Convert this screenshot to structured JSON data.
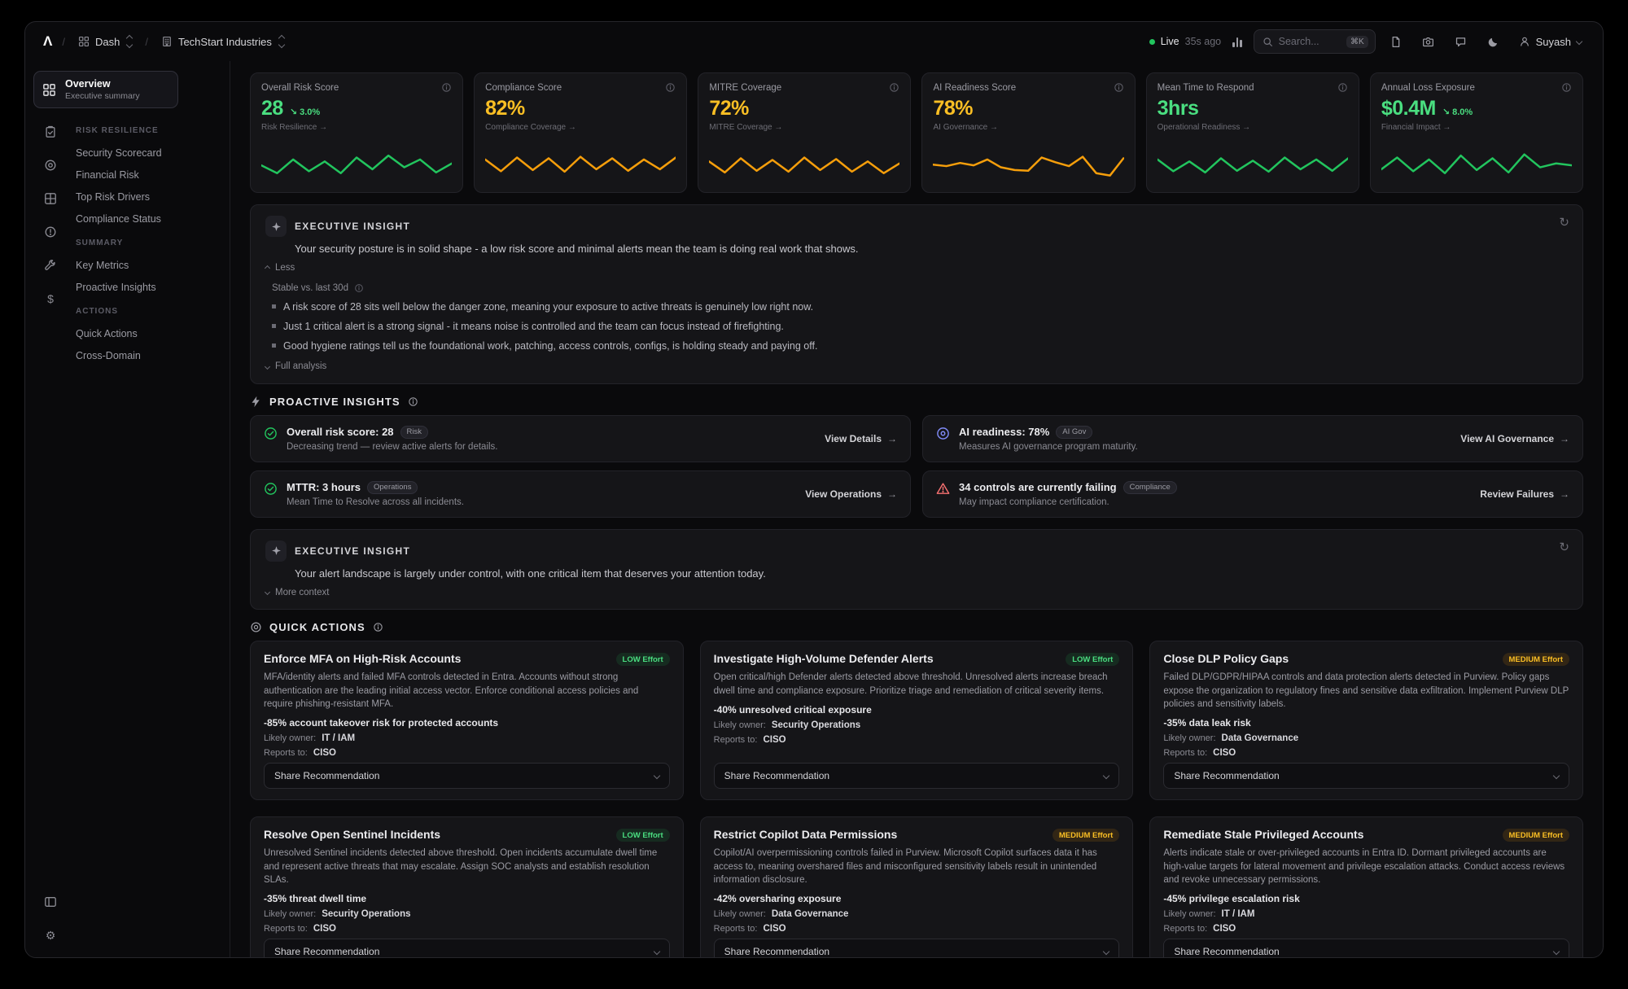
{
  "glyphs": {
    "arrow": "→",
    "refresh": "↻",
    "dollar": "$",
    "gear": "⚙"
  },
  "topbar": {
    "logo": "Λ",
    "crumbs": {
      "sep": "/",
      "dash": "Dash",
      "org": "TechStart Industries"
    },
    "live": {
      "label": "Live",
      "ago": "35s ago"
    },
    "search": {
      "placeholder": "Search...",
      "shortcut": "⌘K"
    },
    "user": {
      "name": "Suyash"
    }
  },
  "sidebar": {
    "overview": {
      "title": "Overview",
      "subtitle": "Executive summary"
    },
    "sections": [
      {
        "label": "RISK RESILIENCE",
        "items": [
          "Security Scorecard",
          "Financial Risk",
          "Top Risk Drivers",
          "Compliance Status"
        ]
      },
      {
        "label": "SUMMARY",
        "items": [
          "Key Metrics",
          "Proactive Insights"
        ]
      },
      {
        "label": "ACTIONS",
        "items": [
          "Quick Actions",
          "Cross-Domain"
        ]
      }
    ]
  },
  "kpis": [
    {
      "label": "Overall Risk Score",
      "value": "28",
      "delta": "↘ 3.0%",
      "sub": "Risk Resilience →",
      "color": "#4ade80",
      "spark": {
        "color": "#22c55e",
        "values": [
          40,
          20,
          55,
          25,
          50,
          20,
          60,
          30,
          65,
          35,
          55,
          22,
          45
        ]
      }
    },
    {
      "label": "Compliance Score",
      "value": "82%",
      "delta": "",
      "sub": "Compliance Coverage →",
      "color": "#fbbf24",
      "spark": {
        "color": "#f59e0b",
        "values": [
          55,
          25,
          60,
          28,
          58,
          24,
          62,
          30,
          58,
          26,
          55,
          30,
          60
        ]
      }
    },
    {
      "label": "MITRE Coverage",
      "value": "72%",
      "delta": "",
      "sub": "MITRE Coverage →",
      "color": "#fbbf24",
      "spark": {
        "color": "#f59e0b",
        "values": [
          50,
          22,
          58,
          26,
          54,
          24,
          60,
          28,
          56,
          24,
          50,
          20,
          45
        ]
      }
    },
    {
      "label": "AI Readiness Score",
      "value": "78%",
      "delta": "",
      "sub": "AI Governance →",
      "color": "#fbbf24",
      "spark": {
        "color": "#f59e0b",
        "values": [
          42,
          38,
          46,
          40,
          55,
          35,
          28,
          26,
          60,
          48,
          38,
          62,
          20,
          14,
          58
        ]
      }
    },
    {
      "label": "Mean Time to Respond",
      "value": "3hrs",
      "delta": "",
      "sub": "Operational Readiness →",
      "color": "#4ade80",
      "spark": {
        "color": "#22c55e",
        "values": [
          55,
          25,
          50,
          22,
          58,
          26,
          52,
          24,
          60,
          30,
          55,
          26,
          58
        ]
      }
    },
    {
      "label": "Annual Loss Exposure",
      "value": "$0.4M",
      "delta": "↘ 8.0%",
      "sub": "Financial Impact →",
      "color": "#4ade80",
      "spark": {
        "color": "#22c55e",
        "values": [
          30,
          60,
          25,
          55,
          20,
          65,
          28,
          58,
          22,
          68,
          35,
          45,
          40
        ]
      }
    }
  ],
  "insight1": {
    "title": "EXECUTIVE INSIGHT",
    "summary": "Your security posture is in solid shape - a low risk score and minimal alerts mean the team is doing real work that shows.",
    "less_label": "Less",
    "trend_label": "Stable vs. last 30d",
    "bullets": [
      "A risk score of 28 sits well below the danger zone, meaning your exposure to active threats is genuinely low right now.",
      "Just 1 critical alert is a strong signal - it means noise is controlled and the team can focus instead of firefighting.",
      "Good hygiene ratings tell us the foundational work, patching, access controls, configs, is holding steady and paying off."
    ],
    "expand_label": "Full analysis"
  },
  "proactive": {
    "title": "PROACTIVE INSIGHTS",
    "cards": [
      {
        "title": "Overall risk score: 28",
        "badge": "Risk",
        "desc": "Decreasing trend — review active alerts for details.",
        "cta": "View Details"
      },
      {
        "title": "AI readiness: 78%",
        "badge": "AI Gov",
        "desc": "Measures AI governance program maturity.",
        "cta": "View AI Governance"
      },
      {
        "title": "MTTR: 3 hours",
        "badge": "Operations",
        "desc": "Mean Time to Resolve across all incidents.",
        "cta": "View Operations"
      },
      {
        "title": "34 controls are currently failing",
        "badge": "Compliance",
        "desc": "May impact compliance certification.",
        "cta": "Review Failures"
      }
    ]
  },
  "insight2": {
    "title": "EXECUTIVE INSIGHT",
    "summary": "Your alert landscape is largely under control, with one critical item that deserves your attention today.",
    "expand_label": "More context"
  },
  "quick_actions": {
    "title": "QUICK ACTIONS",
    "owner_label": "Likely owner:",
    "reports_label": "Reports to:",
    "share_label": "Share Recommendation",
    "cards": [
      {
        "title": "Enforce MFA on High-Risk Accounts",
        "effort": "LOW Effort",
        "body": "MFA/identity alerts and failed MFA controls detected in Entra. Accounts without strong authentication are the leading initial access vector. Enforce conditional access policies and require phishing-resistant MFA.",
        "metric": "-85% account takeover risk for protected accounts",
        "owner": "IT / IAM",
        "reports": "CISO"
      },
      {
        "title": "Investigate High-Volume Defender Alerts",
        "effort": "LOW Effort",
        "body": "Open critical/high Defender alerts detected above threshold. Unresolved alerts increase breach dwell time and compliance exposure. Prioritize triage and remediation of critical severity items.",
        "metric": "-40% unresolved critical exposure",
        "owner": "Security Operations",
        "reports": "CISO"
      },
      {
        "title": "Close DLP Policy Gaps",
        "effort": "MEDIUM Effort",
        "body": "Failed DLP/GDPR/HIPAA controls and data protection alerts detected in Purview. Policy gaps expose the organization to regulatory fines and sensitive data exfiltration. Implement Purview DLP policies and sensitivity labels.",
        "metric": "-35% data leak risk",
        "owner": "Data Governance",
        "reports": "CISO"
      },
      {
        "title": "Resolve Open Sentinel Incidents",
        "effort": "LOW Effort",
        "body": "Unresolved Sentinel incidents detected above threshold. Open incidents accumulate dwell time and represent active threats that may escalate. Assign SOC analysts and establish resolution SLAs.",
        "metric": "-35% threat dwell time",
        "owner": "Security Operations",
        "reports": "CISO"
      },
      {
        "title": "Restrict Copilot Data Permissions",
        "effort": "MEDIUM Effort",
        "body": "Copilot/AI overpermissioning controls failed in Purview. Microsoft Copilot surfaces data it has access to, meaning overshared files and misconfigured sensitivity labels result in unintended information disclosure.",
        "metric": "-42% oversharing exposure",
        "owner": "Data Governance",
        "reports": "CISO"
      },
      {
        "title": "Remediate Stale Privileged Accounts",
        "effort": "MEDIUM Effort",
        "body": "Alerts indicate stale or over-privileged accounts in Entra ID. Dormant privileged accounts are high-value targets for lateral movement and privilege escalation attacks. Conduct access reviews and revoke unnecessary permissions.",
        "metric": "-45% privilege escalation risk",
        "owner": "IT / IAM",
        "reports": "CISO"
      }
    ]
  }
}
